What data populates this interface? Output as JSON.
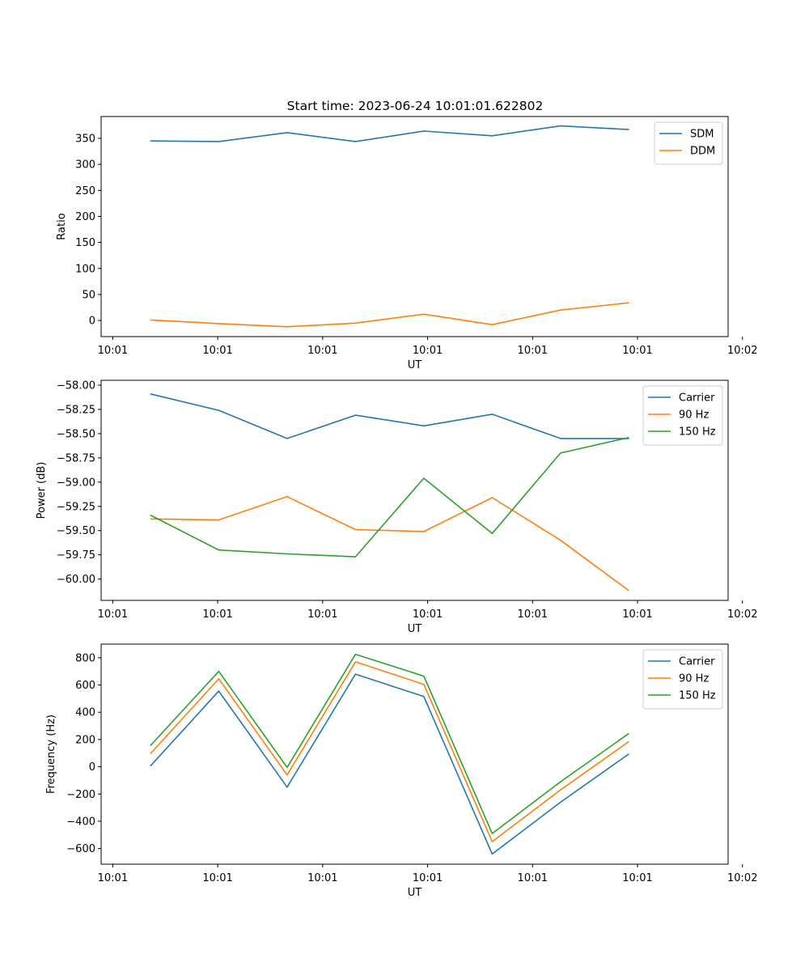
{
  "title": "Start time: 2023-06-24 10:01:01.622802",
  "chart_data": [
    {
      "type": "line",
      "xlabel": "UT",
      "ylabel": "Ratio",
      "x_tick_labels": [
        "10:01",
        "10:01",
        "10:01",
        "10:01",
        "10:01",
        "10:01",
        "10:02"
      ],
      "ylim": [
        -31,
        392
      ],
      "y_ticks": [
        0,
        50,
        100,
        150,
        200,
        250,
        300,
        350
      ],
      "y_tick_labels": [
        "0",
        "50",
        "100",
        "150",
        "200",
        "250",
        "300",
        "350"
      ],
      "x": [
        1,
        2,
        3,
        4,
        5,
        6,
        7,
        8
      ],
      "legend_position": "top-right",
      "grid": false,
      "series": [
        {
          "name": "SDM",
          "color": "#1f77b4",
          "values": [
            345,
            344,
            361,
            344,
            364,
            355,
            374,
            367
          ]
        },
        {
          "name": "DDM",
          "color": "#ff7f0e",
          "values": [
            1,
            -6,
            -12,
            -5,
            12,
            -8,
            20,
            34
          ]
        }
      ]
    },
    {
      "type": "line",
      "xlabel": "UT",
      "ylabel": "Power (dB)",
      "x_tick_labels": [
        "10:01",
        "10:01",
        "10:01",
        "10:01",
        "10:01",
        "10:01",
        "10:02"
      ],
      "ylim": [
        -60.22,
        -57.95
      ],
      "y_ticks": [
        -60.0,
        -59.75,
        -59.5,
        -59.25,
        -59.0,
        -58.75,
        -58.5,
        -58.25,
        -58.0
      ],
      "y_tick_labels": [
        "−60.00",
        "−59.75",
        "−59.50",
        "−59.25",
        "−59.00",
        "−58.75",
        "−58.50",
        "−58.25",
        "−58.00"
      ],
      "x": [
        1,
        2,
        3,
        4,
        5,
        6,
        7,
        8
      ],
      "legend_position": "top-right",
      "grid": false,
      "series": [
        {
          "name": "Carrier",
          "color": "#1f77b4",
          "values": [
            -58.09,
            -58.26,
            -58.55,
            -58.31,
            -58.42,
            -58.3,
            -58.55,
            -58.55
          ]
        },
        {
          "name": "90 Hz",
          "color": "#ff7f0e",
          "values": [
            -59.38,
            -59.39,
            -59.15,
            -59.49,
            -59.51,
            -59.16,
            -59.6,
            -60.12
          ]
        },
        {
          "name": "150 Hz",
          "color": "#2ca02c",
          "values": [
            -59.34,
            -59.7,
            -59.74,
            -59.77,
            -58.96,
            -59.53,
            -58.7,
            -58.54
          ]
        }
      ]
    },
    {
      "type": "line",
      "xlabel": "UT",
      "ylabel": "Frequency (Hz)",
      "x_tick_labels": [
        "10:01",
        "10:01",
        "10:01",
        "10:01",
        "10:01",
        "10:01",
        "10:02"
      ],
      "ylim": [
        -715,
        900
      ],
      "y_ticks": [
        -600,
        -400,
        -200,
        0,
        200,
        400,
        600,
        800
      ],
      "y_tick_labels": [
        "−600",
        "−400",
        "−200",
        "0",
        "200",
        "400",
        "600",
        "800"
      ],
      "x": [
        1,
        2,
        3,
        4,
        5,
        6,
        7,
        8
      ],
      "legend_position": "top-right",
      "grid": false,
      "series": [
        {
          "name": "Carrier",
          "color": "#1f77b4",
          "values": [
            5,
            555,
            -150,
            680,
            515,
            -640,
            -260,
            95
          ]
        },
        {
          "name": "90 Hz",
          "color": "#ff7f0e",
          "values": [
            95,
            645,
            -60,
            770,
            605,
            -550,
            -170,
            185
          ]
        },
        {
          "name": "150 Hz",
          "color": "#2ca02c",
          "values": [
            155,
            700,
            -5,
            825,
            665,
            -490,
            -110,
            245
          ]
        }
      ]
    }
  ]
}
